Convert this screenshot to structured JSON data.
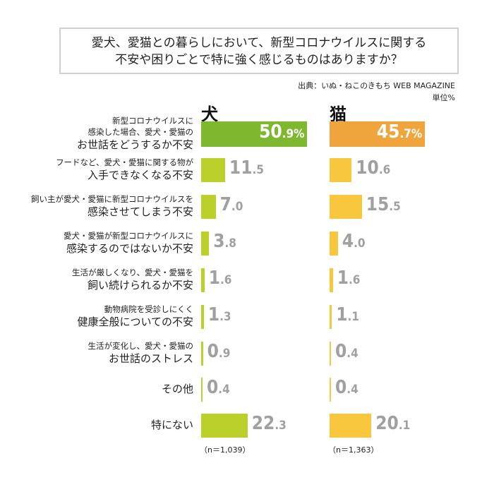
{
  "chart_data": {
    "type": "bar",
    "title": [
      "愛犬、愛猫との暮らしにおいて、新型コロナウイルスに関する",
      "不安や困りごとで特に強く感じるものはありますか？"
    ],
    "source": "出典：いぬ・ねこのきもち WEB MAGAZINE",
    "unit": "単位%",
    "categories": [
      [
        "新型コロナウイルスに",
        "感染した場合、愛犬・愛猫の",
        "お世話をどうするか不安"
      ],
      [
        "フードなど、愛犬・愛猫に関する物が",
        "入手できなくなる不安"
      ],
      [
        "飼い主が愛犬・愛猫に新型コロナウイルスを",
        "感染させてしまう不安"
      ],
      [
        "愛犬・愛猫が新型コロナウイルスに",
        "感染するのではないか不安"
      ],
      [
        "生活が厳しくなり、愛犬・愛猫を",
        "飼い続けられるか不安"
      ],
      [
        "動物病院を受診しにくく",
        "健康全般についての不安"
      ],
      [
        "生活が変化し、愛犬・愛猫の",
        "お世話のストレス"
      ],
      [
        "その他"
      ],
      [
        "特にない"
      ]
    ],
    "series": [
      {
        "name": "犬",
        "n_label": "（n＝1,039）",
        "values": [
          50.9,
          11.5,
          7.0,
          3.8,
          1.6,
          1.3,
          0.9,
          0.4,
          22.3
        ],
        "top_color": "#7db82e",
        "color": "#bcd02c"
      },
      {
        "name": "猫",
        "n_label": "（n＝1,363）",
        "values": [
          45.7,
          10.6,
          15.5,
          4.0,
          1.6,
          1.1,
          0.4,
          0.4,
          20.1
        ],
        "top_color": "#f0a53c",
        "color": "#f9c73e"
      }
    ],
    "percent_sign": "%"
  }
}
